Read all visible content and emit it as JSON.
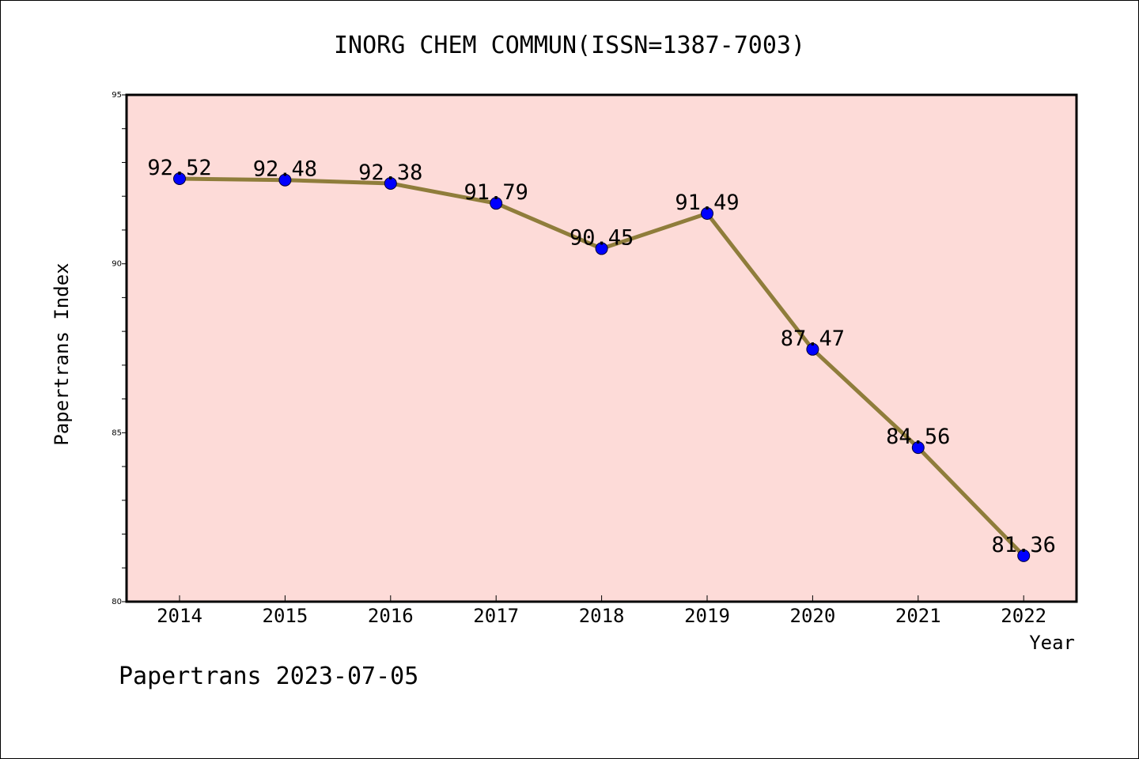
{
  "title": "INORG CHEM COMMUN(ISSN=1387-7003)",
  "footer": "Papertrans 2023-07-05",
  "colors": {
    "plot_background": "#fddbd8",
    "line": "#8f7d3b",
    "marker": "#0000ff",
    "axis": "#000000"
  },
  "chart_data": {
    "type": "line",
    "title": "INORG CHEM COMMUN(ISSN=1387-7003)",
    "xlabel": "Year",
    "ylabel": "Papertrans Index",
    "ylim": [
      80,
      95
    ],
    "yticks": [
      80,
      85,
      90,
      95
    ],
    "grid": false,
    "categories": [
      "2014",
      "2015",
      "2016",
      "2017",
      "2018",
      "2019",
      "2020",
      "2021",
      "2022"
    ],
    "values": [
      92.52,
      92.48,
      92.38,
      91.79,
      90.45,
      91.49,
      87.47,
      84.56,
      81.36
    ],
    "data_labels": [
      "92.52",
      "92.48",
      "92.38",
      "91.79",
      "90.45",
      "91.49",
      "87.47",
      "84.56",
      "81.36"
    ]
  }
}
